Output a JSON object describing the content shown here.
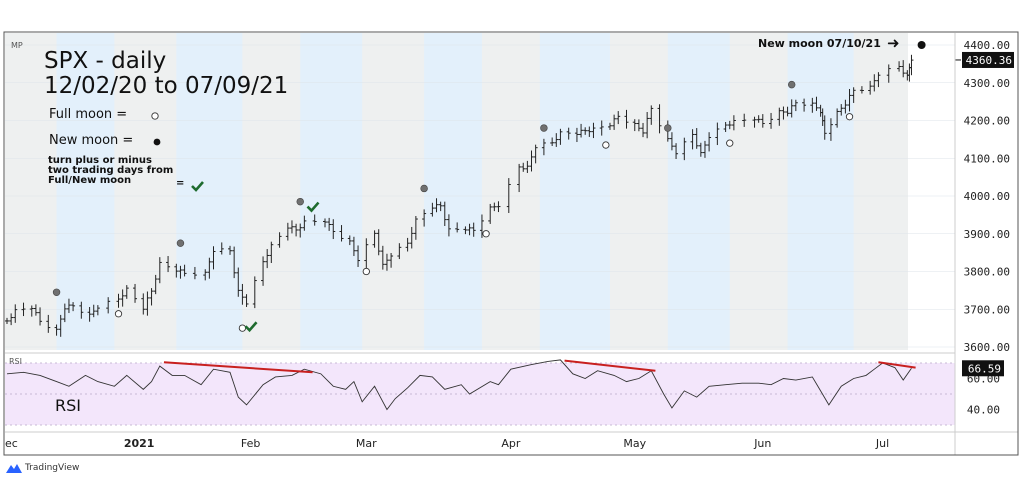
{
  "chart_data": {
    "type": "bar",
    "symbol_tag": "MP",
    "title": "SPX - daily",
    "subtitle": "12/02/20 to 07/09/21",
    "date_range": [
      "2020-12-02",
      "2021-07-09"
    ],
    "ylim": [
      3600,
      4400
    ],
    "y_ticks": [
      "4400.00",
      "4300.00",
      "4200.00",
      "4100.00",
      "4000.00",
      "3900.00",
      "3800.00",
      "3700.00",
      "3600.00"
    ],
    "y_tick_values": [
      4400,
      4300,
      4200,
      4100,
      4000,
      3900,
      3800,
      3700,
      3600
    ],
    "last_price": 4360.36,
    "last_price_label": "4360.36",
    "x_ticks": [
      {
        "label": "ec",
        "date": "2020-12-01"
      },
      {
        "label": "2021",
        "date": "2021-01-03"
      },
      {
        "label": "Feb",
        "date": "2021-01-30"
      },
      {
        "label": "Mar",
        "date": "2021-02-27"
      },
      {
        "label": "Apr",
        "date": "2021-04-03"
      },
      {
        "label": "May",
        "date": "2021-05-03"
      },
      {
        "label": "Jun",
        "date": "2021-06-03"
      },
      {
        "label": "Jul",
        "date": "2021-07-02"
      }
    ],
    "price_points": [
      [
        "2020-12-02",
        3669
      ],
      [
        "2020-12-04",
        3699
      ],
      [
        "2020-12-08",
        3702
      ],
      [
        "2020-12-10",
        3668
      ],
      [
        "2020-12-14",
        3647
      ],
      [
        "2020-12-16",
        3701
      ],
      [
        "2020-12-18",
        3709
      ],
      [
        "2020-12-22",
        3687
      ],
      [
        "2020-12-24",
        3703
      ],
      [
        "2020-12-29",
        3727
      ],
      [
        "2020-12-31",
        3756
      ],
      [
        "2021-01-04",
        3700
      ],
      [
        "2021-01-06",
        3748
      ],
      [
        "2021-01-08",
        3824
      ],
      [
        "2021-01-12",
        3801
      ],
      [
        "2021-01-14",
        3795
      ],
      [
        "2021-01-19",
        3798
      ],
      [
        "2021-01-21",
        3853
      ],
      [
        "2021-01-25",
        3855
      ],
      [
        "2021-01-27",
        3750
      ],
      [
        "2021-01-29",
        3714
      ],
      [
        "2021-02-02",
        3826
      ],
      [
        "2021-02-04",
        3871
      ],
      [
        "2021-02-08",
        3915
      ],
      [
        "2021-02-10",
        3910
      ],
      [
        "2021-02-12",
        3934
      ],
      [
        "2021-02-17",
        3931
      ],
      [
        "2021-02-19",
        3906
      ],
      [
        "2021-02-23",
        3881
      ],
      [
        "2021-02-25",
        3829
      ],
      [
        "2021-03-01",
        3901
      ],
      [
        "2021-03-03",
        3819
      ],
      [
        "2021-03-05",
        3841
      ],
      [
        "2021-03-09",
        3875
      ],
      [
        "2021-03-11",
        3939
      ],
      [
        "2021-03-15",
        3968
      ],
      [
        "2021-03-17",
        3974
      ],
      [
        "2021-03-19",
        3913
      ],
      [
        "2021-03-23",
        3910
      ],
      [
        "2021-03-25",
        3909
      ],
      [
        "2021-03-29",
        3971
      ],
      [
        "2021-03-31",
        3972
      ],
      [
        "2021-04-05",
        4077
      ],
      [
        "2021-04-07",
        4079
      ],
      [
        "2021-04-09",
        4128
      ],
      [
        "2021-04-13",
        4141
      ],
      [
        "2021-04-15",
        4170
      ],
      [
        "2021-04-19",
        4163
      ],
      [
        "2021-04-21",
        4173
      ],
      [
        "2021-04-23",
        4180
      ],
      [
        "2021-04-27",
        4186
      ],
      [
        "2021-04-29",
        4211
      ],
      [
        "2021-05-03",
        4192
      ],
      [
        "2021-05-05",
        4167
      ],
      [
        "2021-05-07",
        4232
      ],
      [
        "2021-05-11",
        4152
      ],
      [
        "2021-05-13",
        4112
      ],
      [
        "2021-05-17",
        4163
      ],
      [
        "2021-05-19",
        4115
      ],
      [
        "2021-05-21",
        4155
      ],
      [
        "2021-05-25",
        4188
      ],
      [
        "2021-05-27",
        4200
      ],
      [
        "2021-06-01",
        4202
      ],
      [
        "2021-06-03",
        4192
      ],
      [
        "2021-06-07",
        4226
      ],
      [
        "2021-06-09",
        4219
      ],
      [
        "2021-06-11",
        4247
      ],
      [
        "2021-06-15",
        4246
      ],
      [
        "2021-06-17",
        4221
      ],
      [
        "2021-06-18",
        4166
      ],
      [
        "2021-06-21",
        4224
      ],
      [
        "2021-06-23",
        4241
      ],
      [
        "2021-06-25",
        4280
      ],
      [
        "2021-06-29",
        4291
      ],
      [
        "2021-07-01",
        4320
      ],
      [
        "2021-07-06",
        4343
      ],
      [
        "2021-07-08",
        4320
      ],
      [
        "2021-07-09",
        4360
      ]
    ],
    "full_moons": [
      [
        "2020-12-29",
        3688
      ],
      [
        "2021-01-28",
        3650
      ],
      [
        "2021-02-27",
        3800
      ],
      [
        "2021-03-28",
        3900
      ],
      [
        "2021-04-26",
        4135
      ],
      [
        "2021-05-26",
        4140
      ],
      [
        "2021-06-24",
        4210
      ]
    ],
    "new_moons": [
      [
        "2020-12-14",
        3745
      ],
      [
        "2021-01-13",
        3875
      ],
      [
        "2021-02-11",
        3985
      ],
      [
        "2021-03-13",
        4020
      ],
      [
        "2021-04-11",
        4180
      ],
      [
        "2021-05-11",
        4180
      ],
      [
        "2021-06-10",
        4295
      ]
    ],
    "next_new_moon": [
      "2021-07-10",
      4400
    ],
    "checkmarks": [
      [
        "2021-01-29",
        3655
      ],
      [
        "2021-02-13",
        3972
      ]
    ],
    "moon_bands_blue": [
      [
        "2020-12-14",
        "2020-12-28"
      ],
      [
        "2021-01-12",
        "2021-01-28"
      ],
      [
        "2021-02-11",
        "2021-02-26"
      ],
      [
        "2021-03-13",
        "2021-03-27"
      ],
      [
        "2021-04-10",
        "2021-04-27"
      ],
      [
        "2021-05-11",
        "2021-05-26"
      ],
      [
        "2021-06-09",
        "2021-06-25"
      ]
    ],
    "rsi": {
      "label": "RSI",
      "big_label": "RSI",
      "ylim": [
        30,
        70
      ],
      "y_ticks": [
        "60.00",
        "40.00"
      ],
      "y_tick_values": [
        60,
        40
      ],
      "last_value_label": "66.59",
      "points": [
        [
          "2020-12-02",
          63
        ],
        [
          "2020-12-06",
          64
        ],
        [
          "2020-12-10",
          62
        ],
        [
          "2020-12-14",
          58
        ],
        [
          "2020-12-17",
          55
        ],
        [
          "2020-12-21",
          62
        ],
        [
          "2020-12-24",
          58
        ],
        [
          "2020-12-28",
          55
        ],
        [
          "2020-12-31",
          62
        ],
        [
          "2021-01-04",
          53
        ],
        [
          "2021-01-06",
          58
        ],
        [
          "2021-01-08",
          68
        ],
        [
          "2021-01-11",
          62
        ],
        [
          "2021-01-14",
          62
        ],
        [
          "2021-01-18",
          56
        ],
        [
          "2021-01-21",
          66
        ],
        [
          "2021-01-25",
          64
        ],
        [
          "2021-01-27",
          48
        ],
        [
          "2021-01-29",
          43
        ],
        [
          "2021-02-02",
          56
        ],
        [
          "2021-02-05",
          61
        ],
        [
          "2021-02-09",
          62
        ],
        [
          "2021-02-12",
          66
        ],
        [
          "2021-02-16",
          63
        ],
        [
          "2021-02-19",
          55
        ],
        [
          "2021-02-22",
          53
        ],
        [
          "2021-02-24",
          58
        ],
        [
          "2021-02-26",
          45
        ],
        [
          "2021-03-01",
          55
        ],
        [
          "2021-03-04",
          40
        ],
        [
          "2021-03-06",
          47
        ],
        [
          "2021-03-09",
          54
        ],
        [
          "2021-03-12",
          62
        ],
        [
          "2021-03-15",
          61
        ],
        [
          "2021-03-18",
          53
        ],
        [
          "2021-03-22",
          56
        ],
        [
          "2021-03-24",
          50
        ],
        [
          "2021-03-29",
          58
        ],
        [
          "2021-03-31",
          56
        ],
        [
          "2021-04-03",
          66
        ],
        [
          "2021-04-08",
          69
        ],
        [
          "2021-04-12",
          71
        ],
        [
          "2021-04-15",
          72
        ],
        [
          "2021-04-18",
          63
        ],
        [
          "2021-04-21",
          60
        ],
        [
          "2021-04-24",
          65
        ],
        [
          "2021-04-28",
          62
        ],
        [
          "2021-05-01",
          58
        ],
        [
          "2021-05-04",
          60
        ],
        [
          "2021-05-07",
          65
        ],
        [
          "2021-05-10",
          50
        ],
        [
          "2021-05-12",
          41
        ],
        [
          "2021-05-15",
          52
        ],
        [
          "2021-05-18",
          48
        ],
        [
          "2021-05-21",
          55
        ],
        [
          "2021-05-25",
          56
        ],
        [
          "2021-05-29",
          57
        ],
        [
          "2021-06-02",
          57
        ],
        [
          "2021-06-05",
          56
        ],
        [
          "2021-06-08",
          60
        ],
        [
          "2021-06-11",
          59
        ],
        [
          "2021-06-15",
          61
        ],
        [
          "2021-06-17",
          52
        ],
        [
          "2021-06-19",
          43
        ],
        [
          "2021-06-22",
          55
        ],
        [
          "2021-06-25",
          60
        ],
        [
          "2021-06-28",
          62
        ],
        [
          "2021-06-30",
          66
        ],
        [
          "2021-07-02",
          70
        ],
        [
          "2021-07-05",
          67
        ],
        [
          "2021-07-07",
          59
        ],
        [
          "2021-07-09",
          66.59
        ]
      ],
      "divergence_lines": [
        [
          [
            "2021-01-09",
            70.5
          ],
          [
            "2021-02-14",
            64
          ]
        ],
        [
          [
            "2021-04-16",
            71.5
          ],
          [
            "2021-05-08",
            65
          ]
        ],
        [
          [
            "2021-07-01",
            70.5
          ],
          [
            "2021-07-10",
            67
          ]
        ]
      ]
    },
    "grid": true,
    "colors": {
      "bar": "#222222",
      "band_blue": "#e3f0fb",
      "band_gray": "#eef0f0",
      "rsi_fill": "#f3e6fb",
      "rsi_line": "#333333",
      "divergence": "#c8201f",
      "check": "#1e6b2e",
      "new_moon": "#707070"
    }
  },
  "annotations": {
    "full_moon_legend": "Full moon =",
    "new_moon_legend": "New moon =",
    "turn_note": [
      "turn plus or minus",
      "two trading days from",
      "Full/New moon"
    ],
    "turn_note_eq": "=",
    "next_new_moon": "New moon 07/10/21"
  },
  "branding": {
    "logo_text": "TradingView"
  }
}
